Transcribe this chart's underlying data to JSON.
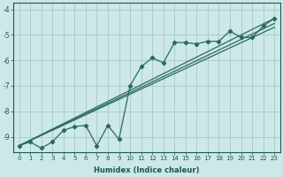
{
  "xlabel": "Humidex (Indice chaleur)",
  "background_color": "#cde8e8",
  "grid_color": "#a8c8c8",
  "line_color": "#2a6b5a",
  "xlim": [
    -0.5,
    23.5
  ],
  "ylim": [
    -9.6,
    -3.75
  ],
  "yticks": [
    -9,
    -8,
    -7,
    -6,
    -5,
    -4
  ],
  "xticks": [
    0,
    1,
    2,
    3,
    4,
    5,
    6,
    7,
    8,
    9,
    10,
    11,
    12,
    13,
    14,
    15,
    16,
    17,
    18,
    19,
    20,
    21,
    22,
    23
  ],
  "data_x": [
    0,
    1,
    2,
    3,
    4,
    5,
    6,
    7,
    8,
    9,
    10,
    11,
    12,
    13,
    14,
    15,
    16,
    17,
    18,
    19,
    20,
    21,
    22,
    23
  ],
  "data_y": [
    -9.35,
    -9.2,
    -9.45,
    -9.2,
    -8.75,
    -8.6,
    -8.55,
    -9.35,
    -8.55,
    -9.1,
    -7.0,
    -6.25,
    -5.9,
    -6.1,
    -5.3,
    -5.3,
    -5.35,
    -5.25,
    -5.25,
    -4.85,
    -5.1,
    -5.1,
    -4.65,
    -4.35
  ],
  "straight_lines": [
    {
      "x": [
        0,
        23
      ],
      "y": [
        -9.35,
        -4.35
      ]
    },
    {
      "x": [
        0,
        23
      ],
      "y": [
        -9.35,
        -4.55
      ]
    },
    {
      "x": [
        0,
        23
      ],
      "y": [
        -9.35,
        -4.7
      ]
    }
  ]
}
